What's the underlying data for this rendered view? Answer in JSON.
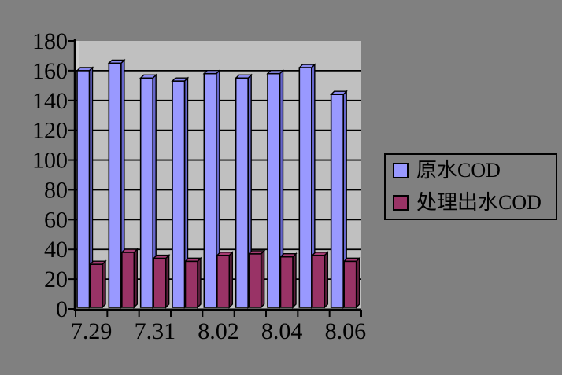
{
  "chart_data": {
    "type": "bar",
    "style": "excel-3d-clustered-column",
    "title": "",
    "xlabel": "",
    "ylabel": "",
    "x_labels": [
      "7.29",
      "",
      "7.31",
      "",
      "8.02",
      "",
      "8.04",
      "",
      "8.06"
    ],
    "series": [
      {
        "name": "原水COD",
        "front_color": "#9999FF",
        "side_color": "#6666CC",
        "top_color": "#8A8AF0",
        "values": [
          160,
          165,
          155,
          153,
          158,
          155,
          158,
          162,
          144
        ]
      },
      {
        "name": "处理出水COD",
        "front_color": "#993366",
        "side_color": "#5C1F3D",
        "top_color": "#A63D73",
        "values": [
          30,
          38,
          34,
          32,
          36,
          37,
          35,
          36,
          32
        ]
      }
    ],
    "ylim": [
      0,
      180
    ],
    "ytick_step": 20,
    "y_tick_labels": [
      "0",
      "20",
      "40",
      "60",
      "80",
      "100",
      "120",
      "140",
      "160",
      "180"
    ],
    "grid": true,
    "gridline_values": [
      20,
      40,
      60,
      80,
      100,
      120,
      140,
      160
    ],
    "legend_position": "right",
    "colors": {
      "chart_bg": "#808080",
      "plot_bg": "#C0C0C0",
      "wall_highlight": "#CDCDCD",
      "axis": "#000000",
      "text": "#000000"
    }
  },
  "legend": {
    "items": [
      {
        "label": "原水COD",
        "color": "#9999FF"
      },
      {
        "label": "处理出水COD",
        "color": "#993366"
      }
    ]
  }
}
